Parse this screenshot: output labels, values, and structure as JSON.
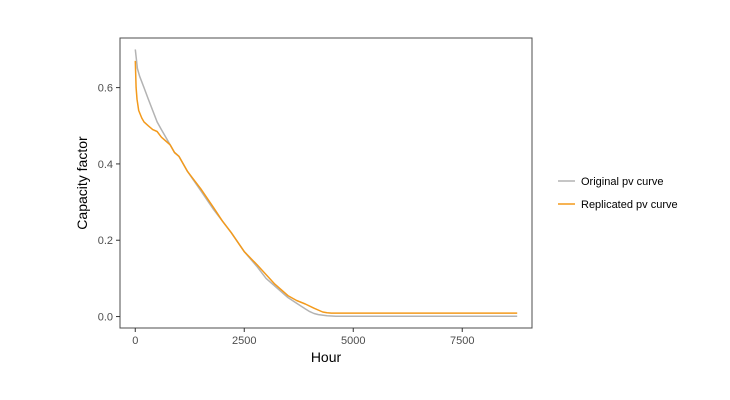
{
  "chart_data": {
    "type": "line",
    "xlabel": "Hour",
    "ylabel": "Capacity factor",
    "xlim": [
      -350,
      9100
    ],
    "ylim": [
      -0.03,
      0.73
    ],
    "x_ticks": [
      0,
      2500,
      5000,
      7500
    ],
    "x_tick_labels": [
      "0",
      "2500",
      "5000",
      "7500"
    ],
    "y_ticks": [
      0.0,
      0.2,
      0.4,
      0.6
    ],
    "y_tick_labels": [
      "0.0",
      "0.2",
      "0.4",
      "0.6"
    ],
    "grid": false,
    "legend_position": "right",
    "series": [
      {
        "name": "Original pv curve",
        "color": "#b3b3b3",
        "x": [
          0,
          50,
          100,
          200,
          300,
          400,
          500,
          600,
          700,
          800,
          900,
          1000,
          1200,
          1500,
          1800,
          2000,
          2200,
          2500,
          2800,
          3000,
          3200,
          3500,
          3700,
          3900,
          4000,
          4100,
          4200,
          4400,
          4600,
          5000,
          6000,
          7000,
          8000,
          8760
        ],
        "values": [
          0.7,
          0.65,
          0.63,
          0.6,
          0.57,
          0.54,
          0.51,
          0.49,
          0.47,
          0.45,
          0.43,
          0.42,
          0.38,
          0.33,
          0.28,
          0.25,
          0.22,
          0.17,
          0.13,
          0.1,
          0.08,
          0.05,
          0.035,
          0.02,
          0.013,
          0.008,
          0.005,
          0.002,
          0.001,
          0.001,
          0.001,
          0.001,
          0.001,
          0.001
        ]
      },
      {
        "name": "Replicated pv curve",
        "color": "#f39a1c",
        "x": [
          0,
          20,
          40,
          80,
          150,
          200,
          300,
          400,
          500,
          600,
          700,
          800,
          900,
          1000,
          1100,
          1200,
          1500,
          1800,
          2000,
          2200,
          2500,
          2800,
          3000,
          3200,
          3500,
          3700,
          3900,
          4100,
          4300,
          4400,
          4500,
          5000,
          6000,
          7000,
          8000,
          8760
        ],
        "values": [
          0.67,
          0.6,
          0.57,
          0.54,
          0.52,
          0.51,
          0.5,
          0.49,
          0.485,
          0.47,
          0.46,
          0.45,
          0.43,
          0.42,
          0.4,
          0.38,
          0.335,
          0.285,
          0.25,
          0.22,
          0.17,
          0.135,
          0.11,
          0.085,
          0.055,
          0.042,
          0.033,
          0.022,
          0.012,
          0.01,
          0.009,
          0.009,
          0.009,
          0.009,
          0.009,
          0.009
        ]
      }
    ]
  }
}
